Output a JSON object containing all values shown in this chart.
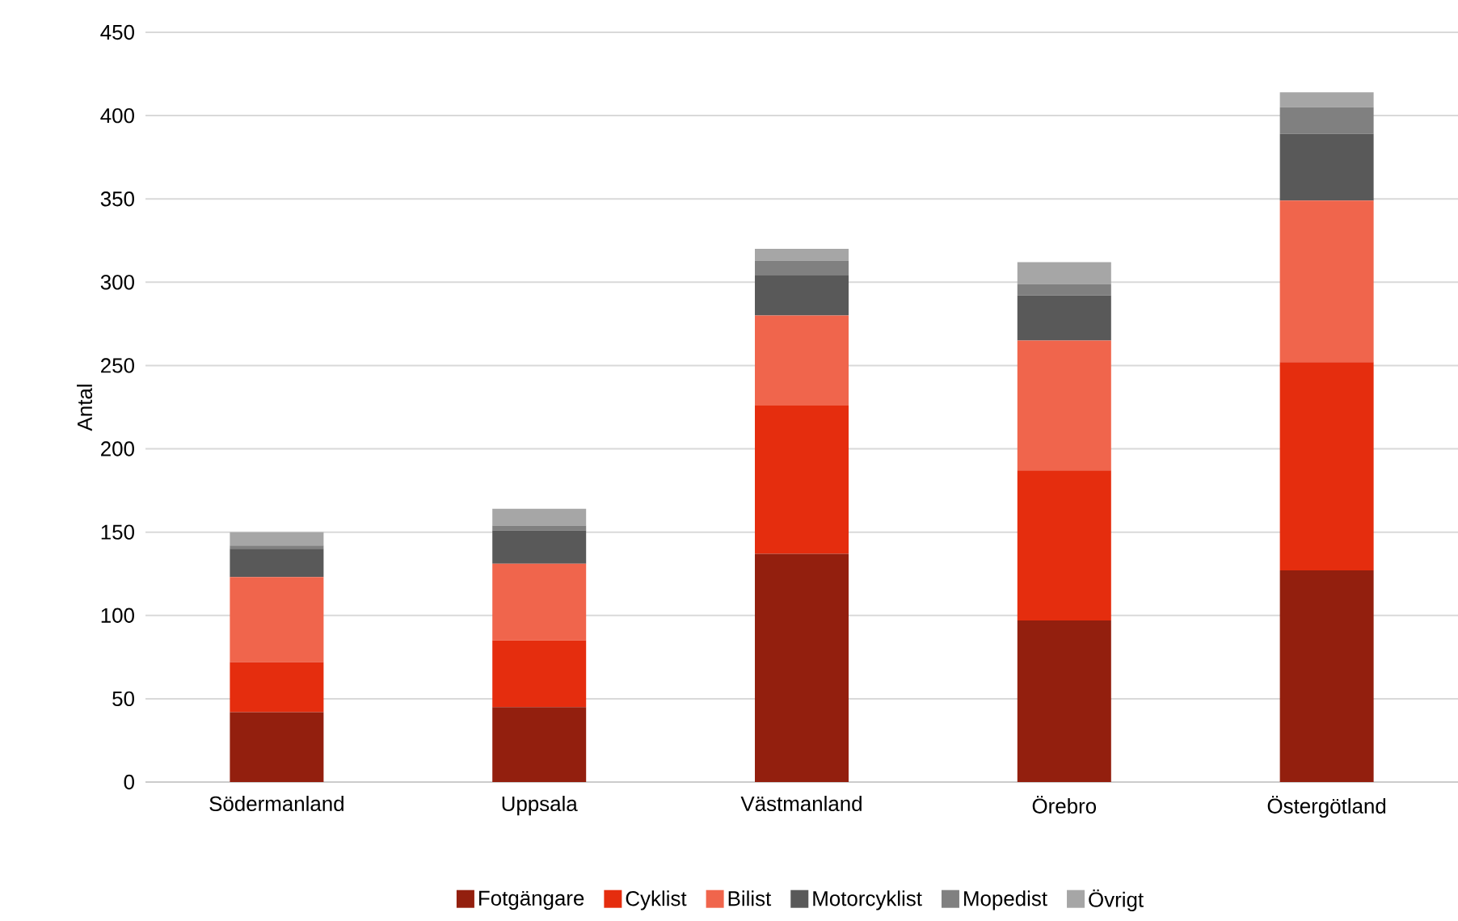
{
  "chart_data": {
    "type": "bar",
    "stacked": true,
    "ylabel": "Antal",
    "categories": [
      "Södermanland",
      "Uppsala",
      "Västmanland",
      "Örebro",
      "Östergötland"
    ],
    "series": [
      {
        "name": "Fotgängare",
        "color": "#931f0e",
        "values": [
          42,
          45,
          137,
          97,
          127
        ]
      },
      {
        "name": "Cyklist",
        "color": "#e52d0e",
        "values": [
          30,
          40,
          89,
          90,
          125
        ]
      },
      {
        "name": "Bilist",
        "color": "#f0654c",
        "values": [
          51,
          46,
          54,
          78,
          97
        ]
      },
      {
        "name": "Motorcyklist",
        "color": "#595959",
        "values": [
          17,
          20,
          24,
          27,
          40
        ]
      },
      {
        "name": "Mopedist",
        "color": "#808080",
        "values": [
          2,
          3,
          9,
          7,
          16
        ]
      },
      {
        "name": "Övrigt",
        "color": "#a6a6a6",
        "values": [
          8,
          10,
          7,
          13,
          9
        ]
      }
    ],
    "ylim": [
      0,
      450
    ],
    "yticks": [
      0,
      50,
      100,
      150,
      200,
      250,
      300,
      350,
      400,
      450
    ],
    "grid": "y",
    "legend": "bottom"
  }
}
